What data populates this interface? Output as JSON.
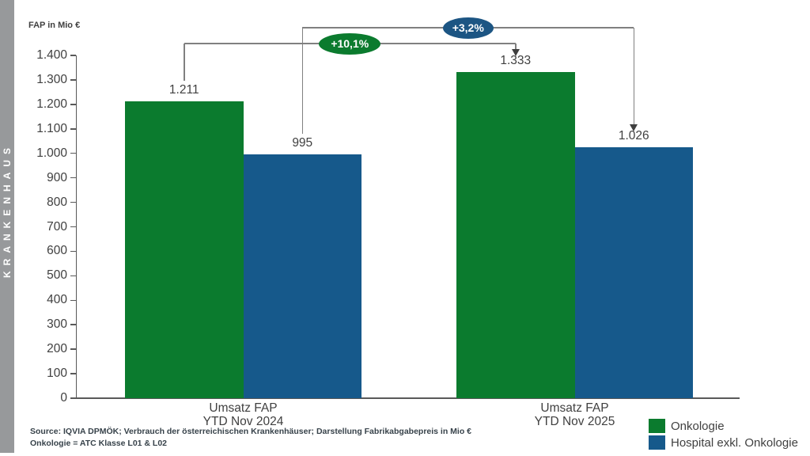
{
  "sidebar": {
    "label": "KRANKENHAUS",
    "bg_color": "#97999B",
    "text_color": "#FFFFFF"
  },
  "chart_data": {
    "type": "bar",
    "title": "",
    "ylabel": "FAP in Mio €",
    "xlabel": "",
    "ylim": [
      0,
      1400
    ],
    "ytick_step": 100,
    "ytick_labels_top_to_bottom": [
      "1.400",
      "1.300",
      "1.200",
      "1.100",
      "1.000",
      "900",
      "800",
      "700",
      "600",
      "500",
      "400",
      "300",
      "200",
      "100",
      "0"
    ],
    "grid": false,
    "categories": [
      "Umsatz FAP YTD Nov 2024",
      "Umsatz FAP YTD Nov 2025"
    ],
    "category_lines": [
      [
        "Umsatz FAP",
        "YTD Nov 2024"
      ],
      [
        "Umsatz FAP",
        "YTD Nov 2025"
      ]
    ],
    "series": [
      {
        "name": "Onkologie",
        "color": "#0B7B2E",
        "values": [
          1211,
          1333
        ],
        "value_labels": [
          "1.211",
          "1.333"
        ]
      },
      {
        "name": "Hospital exkl. Onkologie",
        "color": "#16598B",
        "values": [
          995,
          1026
        ],
        "value_labels": [
          "995",
          "1.026"
        ]
      }
    ],
    "annotations": [
      {
        "label": "+10,1%",
        "series": "Onkologie",
        "color": "#0B7B2E"
      },
      {
        "label": "+3,2%",
        "series": "Hospital exkl. Onkologie",
        "color": "#1C5583"
      }
    ],
    "legend_position": "bottom-right"
  },
  "legend": {
    "items": [
      {
        "label": "Onkologie",
        "color": "#0B7B2E"
      },
      {
        "label": "Hospital exkl. Onkologie",
        "color": "#16598B"
      }
    ]
  },
  "footnotes": [
    "Source: IQVIA DPMÖK; Verbrauch der österreichischen Krankenhäuser; Darstellung Fabrikabgabepreis in Mio €",
    "Onkologie = ATC Klasse L01 & L02"
  ],
  "colors": {
    "axis": "#595959",
    "bracket_line": "#808080",
    "arrow_head": "#3F3F3F",
    "text": "#404040"
  }
}
